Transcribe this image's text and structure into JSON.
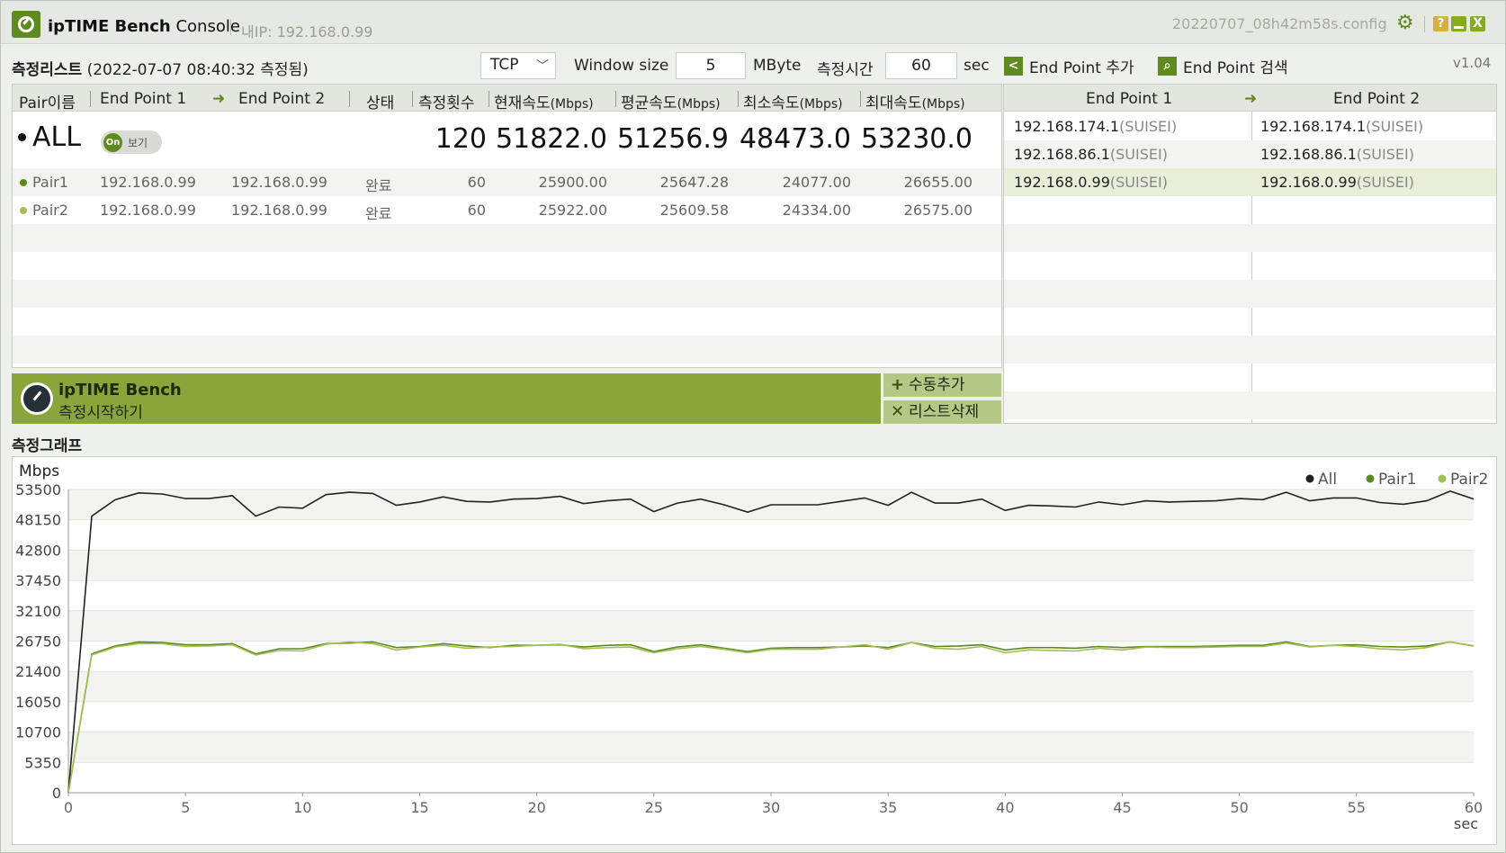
{
  "titlebar": {
    "app_name_bold": "ipTIME Bench",
    "app_name_rest": " Console",
    "ip_label": "내IP: 192.168.0.99",
    "config_name": "20220707_08h42m58s.config",
    "help_label": "?",
    "close_label": "X"
  },
  "toolbar": {
    "list_title": "측정리스트",
    "measured_at": "(2022-07-07 08:40:32 측정됨)",
    "protocol": "TCP",
    "window_size_label": "Window size",
    "window_size_value": "5",
    "window_size_unit": "MByte",
    "duration_label": "측정시간",
    "duration_value": "60",
    "duration_unit": "sec",
    "add_endpoint": "End Point 추가",
    "search_endpoint": "End Point 검색",
    "version": "v1.04"
  },
  "pair_table": {
    "headers": {
      "pair_name": "Pair이름",
      "endpoint1": "End Point 1",
      "endpoint2": "End Point 2",
      "status": "상태",
      "count": "측정횟수",
      "current": "현재속도",
      "avg": "평균속도",
      "min": "최소속도",
      "max": "최대속도",
      "unit": "(Mbps)"
    },
    "all": {
      "name": "ALL",
      "toggle_on": "On",
      "toggle_label": "보기",
      "count": "120",
      "current": "51822.0",
      "avg": "51256.9",
      "min": "48473.0",
      "max": "53230.0"
    },
    "rows": [
      {
        "name": "Pair1",
        "ep1": "192.168.0.99",
        "ep2": "192.168.0.99",
        "status": "완료",
        "count": "60",
        "current": "25900.00",
        "avg": "25647.28",
        "min": "24077.00",
        "max": "26655.00",
        "color": "#5a8a1e"
      },
      {
        "name": "Pair2",
        "ep1": "192.168.0.99",
        "ep2": "192.168.0.99",
        "status": "완료",
        "count": "60",
        "current": "25922.00",
        "avg": "25609.58",
        "min": "24334.00",
        "max": "26575.00",
        "color": "#a3bf55"
      }
    ]
  },
  "endpoint_table": {
    "header1": "End Point 1",
    "header2": "End Point 2",
    "rows": [
      {
        "ep1_ip": "192.168.174.1",
        "ep1_name": "(SUISEI)",
        "ep2_ip": "192.168.174.1",
        "ep2_name": "(SUISEI)"
      },
      {
        "ep1_ip": "192.168.86.1",
        "ep1_name": "(SUISEI)",
        "ep2_ip": "192.168.86.1",
        "ep2_name": "(SUISEI)"
      },
      {
        "ep1_ip": "192.168.0.99",
        "ep1_name": "(SUISEI)",
        "ep2_ip": "192.168.0.99",
        "ep2_name": "(SUISEI)"
      }
    ]
  },
  "start_bar": {
    "title": "ipTIME Bench",
    "subtitle": "측정시작하기",
    "manual_add": "수동추가",
    "delete_list": "리스트삭제"
  },
  "graph_title": "측정그래프",
  "colors": {
    "accent": "#5f8a1f",
    "start_bar": "#8aa63a",
    "series_all": "#222222",
    "series_pair1": "#5a8a1e",
    "series_pair2": "#a3bf55"
  },
  "chart_data": {
    "type": "line",
    "ylabel": "Mbps",
    "xlabel": "sec",
    "ylim": [
      0,
      53500
    ],
    "xlim": [
      0,
      60
    ],
    "yticks": [
      0,
      5350,
      10700,
      16050,
      21400,
      26750,
      32100,
      37450,
      42800,
      48150,
      53500
    ],
    "xticks": [
      0,
      5,
      10,
      15,
      20,
      25,
      30,
      35,
      40,
      45,
      50,
      55,
      60
    ],
    "legend_position": "top-right",
    "grid": true,
    "x": [
      0,
      1,
      2,
      3,
      4,
      5,
      6,
      7,
      8,
      9,
      10,
      11,
      12,
      13,
      14,
      15,
      16,
      17,
      18,
      19,
      20,
      21,
      22,
      23,
      24,
      25,
      26,
      27,
      28,
      29,
      30,
      31,
      32,
      33,
      34,
      35,
      36,
      37,
      38,
      39,
      40,
      41,
      42,
      43,
      44,
      45,
      46,
      47,
      48,
      49,
      50,
      51,
      52,
      53,
      54,
      55,
      56,
      57,
      58,
      59,
      60
    ],
    "series": [
      {
        "name": "All",
        "values": [
          0,
          48800,
          51700,
          52900,
          52700,
          51900,
          51900,
          52400,
          48800,
          50400,
          50200,
          52600,
          53000,
          52800,
          50700,
          51300,
          52200,
          51400,
          51300,
          51800,
          51900,
          52300,
          51000,
          51500,
          51800,
          49600,
          51100,
          51800,
          50800,
          49500,
          50800,
          50800,
          50800,
          51400,
          52000,
          50700,
          53000,
          51100,
          51100,
          51800,
          49800,
          50700,
          50600,
          50400,
          51300,
          50800,
          51500,
          51300,
          51400,
          51500,
          51900,
          51700,
          53000,
          51500,
          52000,
          52000,
          51200,
          50900,
          51500,
          53200,
          51822
        ]
      },
      {
        "name": "Pair1",
        "values": [
          0,
          24500,
          25900,
          26600,
          26500,
          26100,
          26100,
          26300,
          24500,
          25400,
          25400,
          26300,
          26400,
          26600,
          25600,
          25800,
          26300,
          25900,
          25600,
          26000,
          26000,
          26100,
          25700,
          26000,
          26100,
          24900,
          25700,
          26100,
          25500,
          24900,
          25500,
          25600,
          25600,
          25700,
          25900,
          25600,
          26500,
          25800,
          25900,
          26100,
          25200,
          25600,
          25600,
          25500,
          25800,
          25600,
          25800,
          25800,
          25800,
          25900,
          26000,
          26000,
          26600,
          25800,
          26000,
          26100,
          25800,
          25700,
          25900,
          26600,
          25900
        ]
      },
      {
        "name": "Pair2",
        "values": [
          0,
          24300,
          25700,
          26300,
          26300,
          25800,
          25900,
          26100,
          24300,
          25100,
          25000,
          26200,
          26600,
          26300,
          25200,
          25700,
          26000,
          25500,
          25700,
          25800,
          26000,
          26200,
          25400,
          25600,
          25700,
          24700,
          25400,
          25800,
          25300,
          24700,
          25300,
          25300,
          25300,
          25700,
          26100,
          25300,
          26500,
          25500,
          25300,
          25800,
          24700,
          25200,
          25100,
          25000,
          25500,
          25200,
          25700,
          25600,
          25600,
          25700,
          25800,
          25800,
          26400,
          25700,
          26000,
          25800,
          25400,
          25200,
          25600,
          26600,
          25922
        ]
      }
    ]
  }
}
